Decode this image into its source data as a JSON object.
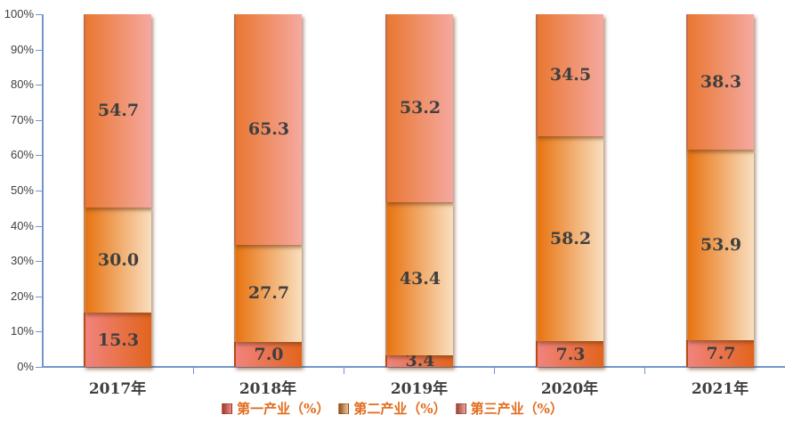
{
  "chart_data": {
    "type": "bar",
    "stacked": true,
    "percent_stacked": true,
    "title": "",
    "xlabel": "",
    "ylabel": "",
    "grid": false,
    "legend_position": "bottom",
    "ylim": [
      0,
      100
    ],
    "y_ticks": [
      "0%",
      "10%",
      "20%",
      "30%",
      "40%",
      "50%",
      "60%",
      "70%",
      "80%",
      "90%",
      "100%"
    ],
    "categories": [
      "2017年",
      "2018年",
      "2019年",
      "2020年",
      "2021年"
    ],
    "series": [
      {
        "name": "第一产业（%）",
        "values": [
          15.3,
          7.0,
          3.4,
          7.3,
          7.7
        ],
        "labels": [
          "15.3",
          "7.0",
          "3.4",
          "7.3",
          "7.7"
        ],
        "gradient": [
          "#F0837E",
          "#E2641C"
        ],
        "swatch": [
          "#9E3A2E",
          "#EE8D84"
        ]
      },
      {
        "name": "第二产业（%）",
        "values": [
          30.0,
          27.7,
          43.4,
          58.2,
          53.9
        ],
        "labels": [
          "30.0",
          "27.7",
          "43.4",
          "58.2",
          "53.9"
        ],
        "gradient": [
          "#E87310",
          "#F9DFBF"
        ],
        "swatch": [
          "#8F4F1C",
          "#EFC896"
        ]
      },
      {
        "name": "第三产业（%）",
        "values": [
          54.7,
          65.3,
          53.2,
          34.5,
          38.3
        ],
        "labels": [
          "54.7",
          "65.3",
          "53.2",
          "34.5",
          "38.3"
        ],
        "gradient": [
          "#E97731",
          "#F5A9A0"
        ],
        "swatch": [
          "#9A4436",
          "#EFA298"
        ]
      }
    ]
  },
  "colors": {
    "background": "#FFFFFF",
    "axis": "#7396C9",
    "tick_text": "#404040",
    "data_label": "#3F3F3F",
    "legend_text": "#E26B1C"
  }
}
